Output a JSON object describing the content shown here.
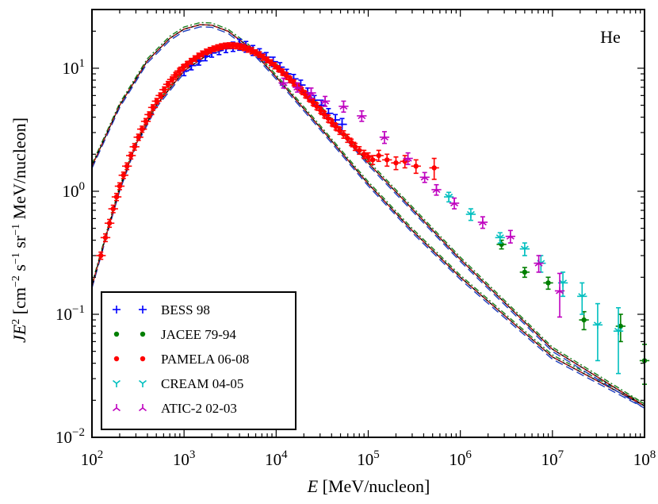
{
  "chart_data": {
    "type": "scatter",
    "panel_label": "He",
    "xlabel": {
      "symbol": "E",
      "rest": " [MeV/nucleon]"
    },
    "ylabel": {
      "prefix": "JE",
      "sup": "2",
      "rest1": " [cm",
      "sup2": "−2",
      "rest2": " s",
      "sup3": "−1",
      "rest3": " sr",
      "sup4": "−1",
      "rest4": " MeV/nucleon]"
    },
    "xscale": "log",
    "yscale": "log",
    "xlim": [
      100,
      100000000
    ],
    "ylim": [
      0.01,
      30
    ],
    "x_ticks": [
      {
        "value": 100,
        "base": "10",
        "exp": "2"
      },
      {
        "value": 1000,
        "base": "10",
        "exp": "3"
      },
      {
        "value": 10000,
        "base": "10",
        "exp": "4"
      },
      {
        "value": 100000,
        "base": "10",
        "exp": "5"
      },
      {
        "value": 1000000,
        "base": "10",
        "exp": "6"
      },
      {
        "value": 10000000,
        "base": "10",
        "exp": "7"
      },
      {
        "value": 100000000,
        "base": "10",
        "exp": "8"
      }
    ],
    "y_ticks": [
      {
        "value": 0.01,
        "base": "10",
        "exp": "−2"
      },
      {
        "value": 0.1,
        "base": "10",
        "exp": "−1"
      },
      {
        "value": 1,
        "base": "10",
        "exp": "0"
      },
      {
        "value": 10,
        "base": "10",
        "exp": "1"
      }
    ],
    "models": [
      {
        "name": "upper-model",
        "color": "#000000",
        "points": [
          [
            100,
            1.6
          ],
          [
            200,
            5.0
          ],
          [
            400,
            11.5
          ],
          [
            700,
            17.5
          ],
          [
            1000,
            20.8
          ],
          [
            1500,
            22.6
          ],
          [
            2000,
            22.4
          ],
          [
            3000,
            20.0
          ],
          [
            5000,
            15.0
          ],
          [
            10000,
            8.5
          ],
          [
            30000,
            3.3
          ],
          [
            100000,
            1.15
          ],
          [
            300000,
            0.48
          ],
          [
            1000000,
            0.2
          ],
          [
            10000000,
            0.045
          ],
          [
            100000000,
            0.018
          ]
        ]
      },
      {
        "name": "lower-model",
        "color": "#000000",
        "points": [
          [
            100,
            0.17
          ],
          [
            150,
            0.5
          ],
          [
            200,
            1.05
          ],
          [
            300,
            2.4
          ],
          [
            500,
            5.0
          ],
          [
            1000,
            9.5
          ],
          [
            2000,
            13.6
          ],
          [
            3000,
            15.0
          ],
          [
            4000,
            15.0
          ],
          [
            6000,
            13.5
          ],
          [
            10000,
            10.5
          ],
          [
            30000,
            4.8
          ],
          [
            100000,
            1.7
          ],
          [
            300000,
            0.72
          ],
          [
            1000000,
            0.28
          ],
          [
            10000000,
            0.052
          ],
          [
            100000000,
            0.018
          ]
        ]
      }
    ],
    "series": [
      {
        "name": "BESS 98",
        "marker": "plus",
        "color": "#0000ff",
        "points": [
          [
            1000,
            9.5,
            0.8
          ],
          [
            1200,
            10.5,
            0.8
          ],
          [
            1450,
            11.5,
            0.9
          ],
          [
            1700,
            12.5,
            1.0
          ],
          [
            2000,
            13.3,
            1.0
          ],
          [
            2400,
            14.0,
            1.1
          ],
          [
            2850,
            14.5,
            1.1
          ],
          [
            3400,
            15.0,
            1.3
          ],
          [
            4000,
            15.6,
            1.6
          ],
          [
            4700,
            15.0,
            1.5
          ],
          [
            5600,
            14.0,
            1.3
          ],
          [
            6600,
            13.2,
            1.2
          ],
          [
            7800,
            12.3,
            1.1
          ],
          [
            9300,
            11.3,
            1.0
          ],
          [
            11000,
            10.2,
            0.9
          ],
          [
            13000,
            9.0,
            0.8
          ],
          [
            15500,
            8.2,
            0.7
          ],
          [
            18500,
            7.3,
            0.7
          ],
          [
            22000,
            6.3,
            0.6
          ],
          [
            26000,
            5.5,
            0.5
          ],
          [
            31000,
            5.0,
            0.5
          ],
          [
            37000,
            4.3,
            0.4
          ],
          [
            44000,
            3.8,
            0.4
          ],
          [
            52000,
            3.5,
            0.4
          ]
        ]
      },
      {
        "name": "JACEE 79-94",
        "marker": "dot",
        "color": "#007f00",
        "points": [
          [
            2800000,
            0.37,
            0.03
          ],
          [
            5000000,
            0.22,
            0.02
          ],
          [
            9000000,
            0.18,
            0.02
          ],
          [
            22000000,
            0.09,
            0.015
          ],
          [
            55000000,
            0.08,
            0.02
          ],
          [
            100000000,
            0.042,
            0.015
          ]
        ]
      },
      {
        "name": "PAMELA 06-08",
        "marker": "dot",
        "color": "#ff0000",
        "points": [
          [
            125,
            0.3,
            0.02
          ],
          [
            140,
            0.42,
            0.03
          ],
          [
            155,
            0.55,
            0.04
          ],
          [
            170,
            0.72,
            0.05
          ],
          [
            185,
            0.9,
            0.06
          ],
          [
            200,
            1.1,
            0.07
          ],
          [
            220,
            1.35,
            0.08
          ],
          [
            240,
            1.6,
            0.1
          ],
          [
            265,
            1.95,
            0.12
          ],
          [
            290,
            2.3,
            0.14
          ],
          [
            320,
            2.75,
            0.16
          ],
          [
            350,
            3.2,
            0.18
          ],
          [
            385,
            3.7,
            0.2
          ],
          [
            420,
            4.2,
            0.22
          ],
          [
            460,
            4.8,
            0.25
          ],
          [
            505,
            5.4,
            0.28
          ],
          [
            555,
            6.0,
            0.3
          ],
          [
            610,
            6.7,
            0.35
          ],
          [
            670,
            7.4,
            0.4
          ],
          [
            740,
            8.1,
            0.4
          ],
          [
            810,
            8.8,
            0.45
          ],
          [
            890,
            9.5,
            0.5
          ],
          [
            980,
            10.2,
            0.5
          ],
          [
            1080,
            10.8,
            0.55
          ],
          [
            1190,
            11.4,
            0.6
          ],
          [
            1310,
            12.0,
            0.6
          ],
          [
            1440,
            12.6,
            0.65
          ],
          [
            1580,
            13.1,
            0.7
          ],
          [
            1740,
            13.6,
            0.7
          ],
          [
            1910,
            14.0,
            0.75
          ],
          [
            2100,
            14.4,
            0.75
          ],
          [
            2310,
            14.7,
            0.8
          ],
          [
            2540,
            15.0,
            0.8
          ],
          [
            2800,
            15.2,
            0.8
          ],
          [
            3080,
            15.3,
            0.8
          ],
          [
            3380,
            15.3,
            0.8
          ],
          [
            3720,
            15.2,
            0.8
          ],
          [
            4090,
            15.0,
            0.8
          ],
          [
            4500,
            14.7,
            0.8
          ],
          [
            4950,
            14.3,
            0.8
          ],
          [
            5450,
            13.9,
            0.8
          ],
          [
            6000,
            13.4,
            0.7
          ],
          [
            6600,
            12.9,
            0.7
          ],
          [
            7260,
            12.3,
            0.7
          ],
          [
            7980,
            11.7,
            0.6
          ],
          [
            8780,
            11.1,
            0.6
          ],
          [
            9660,
            10.5,
            0.6
          ],
          [
            10600,
            9.9,
            0.5
          ],
          [
            11700,
            9.3,
            0.5
          ],
          [
            12900,
            8.7,
            0.5
          ],
          [
            14200,
            8.1,
            0.4
          ],
          [
            15600,
            7.6,
            0.4
          ],
          [
            17200,
            7.1,
            0.4
          ],
          [
            18900,
            6.6,
            0.35
          ],
          [
            20800,
            6.1,
            0.35
          ],
          [
            22800,
            5.7,
            0.3
          ],
          [
            25100,
            5.3,
            0.3
          ],
          [
            27600,
            4.9,
            0.3
          ],
          [
            30400,
            4.55,
            0.25
          ],
          [
            33400,
            4.2,
            0.25
          ],
          [
            36800,
            3.9,
            0.25
          ],
          [
            40500,
            3.6,
            0.2
          ],
          [
            44500,
            3.35,
            0.2
          ],
          [
            49000,
            3.1,
            0.2
          ],
          [
            54000,
            2.9,
            0.2
          ],
          [
            59500,
            2.7,
            0.2
          ],
          [
            65500,
            2.5,
            0.15
          ],
          [
            72000,
            2.3,
            0.15
          ],
          [
            80000,
            2.15,
            0.15
          ],
          [
            90000,
            2.0,
            0.15
          ],
          [
            100000,
            1.9,
            0.15
          ],
          [
            112000,
            1.8,
            0.15
          ],
          [
            130000,
            1.95,
            0.2
          ],
          [
            160000,
            1.8,
            0.2
          ],
          [
            200000,
            1.7,
            0.2
          ],
          [
            250000,
            1.75,
            0.2
          ],
          [
            330000,
            1.6,
            0.2
          ],
          [
            520000,
            1.55,
            0.3
          ]
        ]
      },
      {
        "name": "CREAM 04-05",
        "marker": "tri_down",
        "color": "#00bfbf",
        "points": [
          [
            750000,
            0.9,
            0.08
          ],
          [
            1300000,
            0.65,
            0.07
          ],
          [
            2700000,
            0.42,
            0.04
          ],
          [
            5000000,
            0.34,
            0.04
          ],
          [
            7500000,
            0.26,
            0.04
          ],
          [
            13000000,
            0.18,
            0.04
          ],
          [
            21000000,
            0.14,
            0.04
          ],
          [
            31000000,
            0.082,
            0.04
          ],
          [
            52000000,
            0.073,
            0.04
          ]
        ]
      },
      {
        "name": "ATIC-2 02-03",
        "marker": "tri_up",
        "color": "#bf00bf",
        "points": [
          [
            12000,
            7.6,
            0.7
          ],
          [
            17000,
            7.0,
            0.6
          ],
          [
            24000,
            6.3,
            0.6
          ],
          [
            34000,
            5.4,
            0.5
          ],
          [
            54000,
            4.9,
            0.5
          ],
          [
            85000,
            4.1,
            0.4
          ],
          [
            150000,
            2.75,
            0.3
          ],
          [
            270000,
            1.85,
            0.2
          ],
          [
            410000,
            1.3,
            0.12
          ],
          [
            550000,
            1.03,
            0.1
          ],
          [
            860000,
            0.8,
            0.08
          ],
          [
            1750000,
            0.56,
            0.06
          ],
          [
            3500000,
            0.43,
            0.05
          ],
          [
            7100000,
            0.26,
            0.04
          ],
          [
            12000000,
            0.155,
            0.06
          ]
        ]
      }
    ],
    "legend": {
      "placement": "lower-left"
    }
  }
}
